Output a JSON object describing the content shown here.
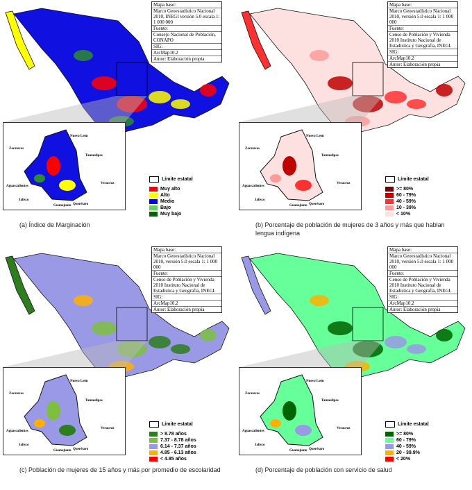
{
  "panels": [
    {
      "id": "a",
      "caption": "(a) Índice de Marginación",
      "meta": [
        "Mapa base:",
        "Marco Geoestadístico Nacional 2010, INEGI versión 5.0 escala 1: 1 000 000",
        "Fuente:",
        "Consejo Nacional de Población, CONAPO",
        "SIG:",
        "ArcMap10.2",
        "Autor: Elaboración propia"
      ],
      "legend_limit": "Límite estatal",
      "legend": [
        {
          "label": "Muy alto",
          "color": "#ff0000"
        },
        {
          "label": "Alto",
          "color": "#ffff00"
        },
        {
          "label": "Medio",
          "color": "#0000ff"
        },
        {
          "label": "Bajo",
          "color": "#66cc66"
        },
        {
          "label": "Muy bajo",
          "color": "#006600"
        }
      ],
      "base": "#1010e0",
      "accents": [
        "#ff0000",
        "#ffff00",
        "#2e8b2e"
      ]
    },
    {
      "id": "b",
      "caption": "(b) Porcentaje de población de mujeres de 3 años y más que hablan lengua indígena",
      "meta": [
        "Mapa base:",
        "Marco Geoestadístico Nacional 2010, versión 5.0 escala 1: 1 000 000",
        "Fuente:",
        "Censo de Población y Vivienda 2010 Instituto Nacional de Estadística y Geografía, INEGI.",
        "SIG:",
        "ArcMap10.2",
        "Autor: Elaboración propia"
      ],
      "legend_limit": "Límite estatal",
      "legend": [
        {
          "label": ">= 80%",
          "color": "#7a0000"
        },
        {
          "label": "60 - 79%",
          "color": "#c00000"
        },
        {
          "label": "40 - 59%",
          "color": "#ff3030"
        },
        {
          "label": "10 - 39%",
          "color": "#ff9a9a"
        },
        {
          "label": "< 10%",
          "color": "#fde0e0"
        }
      ],
      "base": "#fde0e0",
      "accents": [
        "#c00000",
        "#ff3030",
        "#ff9a9a"
      ]
    },
    {
      "id": "c",
      "caption": "(c) Población de mujeres de 15 años y más por promedio de escolaridad",
      "meta": [
        "Mapa base:",
        "Marco Geoestadístico Nacional 2010, versión 5.0 escala 1: 1 000 000",
        "Fuente:",
        "Censo de Población y Vivienda 2010 Instituto Nacional de Estadística y Geografía, INEGI.",
        "SIG:",
        "ArcMap10.2",
        "Autor: Elaboración propia"
      ],
      "legend_limit": "Límite estatal",
      "legend": [
        {
          "label": "> 8.78 años",
          "color": "#2e7d1e"
        },
        {
          "label": "7.37 - 8.78 años",
          "color": "#7fbf3f"
        },
        {
          "label": "6.14 - 7.37 años",
          "color": "#9999e6"
        },
        {
          "label": "4.85 - 6.13 años",
          "color": "#ffb000"
        },
        {
          "label": "< 4.85 años",
          "color": "#ff0000"
        }
      ],
      "base": "#9999e6",
      "accents": [
        "#7fbf3f",
        "#2e7d1e",
        "#ffb000"
      ]
    },
    {
      "id": "d",
      "caption": "(d) Porcentaje de población con servicio de salud",
      "meta": [
        "Mapa base:",
        "Marco Geoestadístico Nacional 2010, versión 5.0 escala 1: 1 000 000",
        "Fuente:",
        "Censo de Población y Vivienda 2010 Instituto Nacional de Estadística y Geografía, INEGI.",
        "SIG:",
        "ArcMap10.2",
        "Autor: Elaboración propia"
      ],
      "legend_limit": "Límite estatal",
      "legend": [
        {
          "label": ">= 80%",
          "color": "#006400"
        },
        {
          "label": "60 - 79%",
          "color": "#66ff99"
        },
        {
          "label": "40 - 59%",
          "color": "#9999e6"
        },
        {
          "label": "20 - 39.9%",
          "color": "#ffb000"
        },
        {
          "label": "< 20%",
          "color": "#ff0000"
        }
      ],
      "base": "#66ff99",
      "accents": [
        "#006400",
        "#9999e6",
        "#ffb000"
      ]
    }
  ],
  "inset_labels": [
    "Zacatecas",
    "Nuevo León",
    "Tamaulipas",
    "Aguascalientes",
    "Jalisco",
    "Guanajuato",
    "Querétaro",
    "Veracruz"
  ]
}
